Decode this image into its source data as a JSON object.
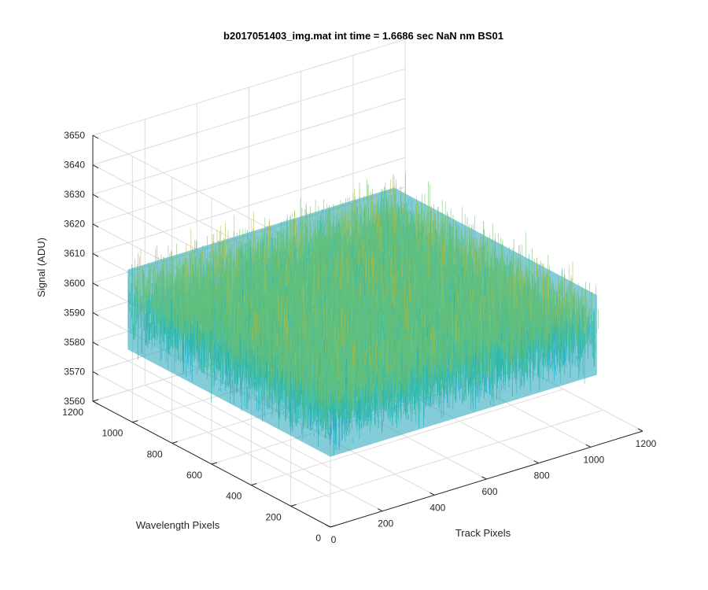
{
  "chart_data": {
    "type": "surface",
    "title": "b2017051403_img.mat int time = 1.6686 sec  NaN nm BS01",
    "xlabel": "Track Pixels",
    "ylabel": "Wavelength Pixels",
    "zlabel": "Signal (ADU)",
    "xlim": [
      0,
      1200
    ],
    "ylim": [
      0,
      1200
    ],
    "zlim": [
      3560,
      3650
    ],
    "x_ticks": [
      0,
      200,
      400,
      600,
      800,
      1000,
      1200
    ],
    "y_ticks": [
      0,
      200,
      400,
      600,
      800,
      1000,
      1200
    ],
    "z_ticks": [
      3560,
      3570,
      3580,
      3590,
      3600,
      3610,
      3620,
      3630,
      3640,
      3650
    ],
    "grid": true,
    "colormap": "parula",
    "surface": {
      "x_range": [
        0,
        1024
      ],
      "y_range": [
        0,
        1024
      ],
      "mean": 3600,
      "noise_range": [
        3565,
        3630
      ]
    }
  }
}
